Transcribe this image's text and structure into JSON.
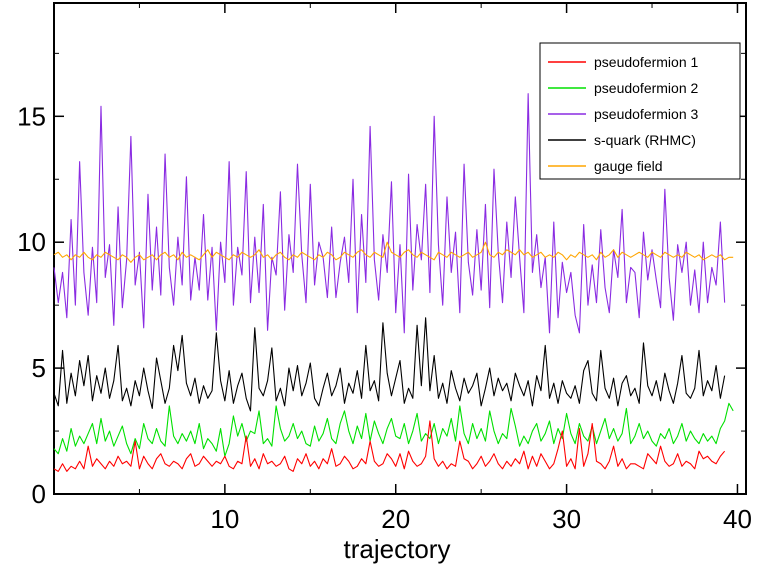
{
  "chart_data": {
    "type": "line",
    "title": "",
    "xlabel": "trajectory",
    "ylabel": "",
    "xlim": [
      0,
      40.5
    ],
    "ylim": [
      0,
      19.5
    ],
    "x_ticks": [
      10,
      20,
      30,
      40
    ],
    "y_ticks": [
      0,
      5,
      10,
      15
    ],
    "x_tick_labels": [
      "10",
      "20",
      "30",
      "40"
    ],
    "y_tick_labels": [
      "0",
      "5",
      "10",
      "15"
    ],
    "grid": false,
    "legend_position": "top-right",
    "note": "series values estimated from plot; sampled every 0.25 trajectory units",
    "series": [
      {
        "name": "pseudofermion 1",
        "color": "#ff0000",
        "x_start": 0,
        "x_step": 0.25,
        "values": [
          1.0,
          0.9,
          1.2,
          0.9,
          1.1,
          1.0,
          1.3,
          1.0,
          1.9,
          1.1,
          1.4,
          1.2,
          1.0,
          1.3,
          1.1,
          1.5,
          1.2,
          1.3,
          1.1,
          2.1,
          1.0,
          1.5,
          1.2,
          1.0,
          1.4,
          1.6,
          1.2,
          1.1,
          1.3,
          1.2,
          1.0,
          1.4,
          1.6,
          1.1,
          1.2,
          1.5,
          1.3,
          1.1,
          1.3,
          1.2,
          1.5,
          1.1,
          1.0,
          1.3,
          1.2,
          2.3,
          1.1,
          1.4,
          1.0,
          1.6,
          1.2,
          1.3,
          1.1,
          1.2,
          1.5,
          1.0,
          0.9,
          1.4,
          1.2,
          1.6,
          1.1,
          1.3,
          1.0,
          1.4,
          1.2,
          1.8,
          1.1,
          1.2,
          1.5,
          1.3,
          1.0,
          1.1,
          1.4,
          1.2,
          2.1,
          1.3,
          1.1,
          1.2,
          1.6,
          1.4,
          1.1,
          1.6,
          1.0,
          1.7,
          1.3,
          1.1,
          1.2,
          1.5,
          2.9,
          1.4,
          1.1,
          1.3,
          1.0,
          1.2,
          1.1,
          2.1,
          1.4,
          1.3,
          1.0,
          1.2,
          1.5,
          1.1,
          1.3,
          1.6,
          1.2,
          1.0,
          1.3,
          1.1,
          1.4,
          1.2,
          1.7,
          1.0,
          1.5,
          1.1,
          1.6,
          1.3,
          1.0,
          1.2,
          1.8,
          2.5,
          1.1,
          1.4,
          1.0,
          2.6,
          1.1,
          1.6,
          2.8,
          1.3,
          1.2,
          1.0,
          1.3,
          1.9,
          1.1,
          1.4,
          1.0,
          1.2,
          1.2,
          1.1,
          1.0,
          1.6,
          1.4,
          1.2,
          1.9,
          1.3,
          1.1,
          1.2,
          1.6,
          1.1,
          1.3,
          1.2,
          1.0,
          1.7,
          1.4,
          1.5,
          1.3,
          1.2,
          1.5,
          1.7
        ]
      },
      {
        "name": "pseudofermion 2",
        "color": "#00e000",
        "x_start": 0,
        "x_step": 0.25,
        "values": [
          1.8,
          1.6,
          2.2,
          1.7,
          2.6,
          1.9,
          2.3,
          2.0,
          2.4,
          2.8,
          2.0,
          3.0,
          2.1,
          2.5,
          1.9,
          2.3,
          2.7,
          2.0,
          1.6,
          2.2,
          1.8,
          2.8,
          2.2,
          2.0,
          2.6,
          2.1,
          1.9,
          3.5,
          2.3,
          2.0,
          2.4,
          2.1,
          2.5,
          2.0,
          2.8,
          1.8,
          2.2,
          2.0,
          1.7,
          2.6,
          1.5,
          2.0,
          3.1,
          2.3,
          2.8,
          2.1,
          2.5,
          2.4,
          3.3,
          2.0,
          2.2,
          1.9,
          3.5,
          2.6,
          2.1,
          2.3,
          2.8,
          2.2,
          2.5,
          2.0,
          1.9,
          2.7,
          2.1,
          2.4,
          3.0,
          2.2,
          2.0,
          2.8,
          3.3,
          2.5,
          2.0,
          2.7,
          2.2,
          3.2,
          2.1,
          2.9,
          2.4,
          2.0,
          2.6,
          3.0,
          2.3,
          2.2,
          2.8,
          2.0,
          2.5,
          3.2,
          2.1,
          2.4,
          2.2,
          2.8,
          2.0,
          2.6,
          2.3,
          3.0,
          2.1,
          3.5,
          2.4,
          2.0,
          2.8,
          2.2,
          2.6,
          2.1,
          3.3,
          2.5,
          2.0,
          2.4,
          2.2,
          3.4,
          2.7,
          1.9,
          2.3,
          2.0,
          2.5,
          2.8,
          2.1,
          2.4,
          2.9,
          2.0,
          2.6,
          2.2,
          3.2,
          2.4,
          2.0,
          2.8,
          2.3,
          2.1,
          2.7,
          2.0,
          2.5,
          3.0,
          2.2,
          2.6,
          2.1,
          2.4,
          3.4,
          2.0,
          2.3,
          2.8,
          2.2,
          2.5,
          2.1,
          1.9,
          2.4,
          2.2,
          2.6,
          2.0,
          2.3,
          2.8,
          2.1,
          2.5,
          2.2,
          2.0,
          2.4,
          2.1,
          2.3,
          2.0,
          2.6,
          2.9,
          3.6,
          3.3
        ]
      },
      {
        "name": "pseudofermion 3",
        "color": "#8a2be2",
        "x_start": 0,
        "x_step": 0.25,
        "values": [
          9.0,
          7.6,
          8.8,
          7.0,
          10.9,
          7.5,
          13.2,
          8.8,
          7.1,
          9.8,
          7.6,
          15.4,
          8.6,
          9.9,
          6.7,
          11.4,
          7.4,
          9.3,
          14.2,
          8.3,
          9.6,
          6.6,
          11.9,
          8.1,
          10.6,
          7.9,
          13.5,
          9.0,
          7.5,
          10.2,
          8.3,
          12.6,
          7.7,
          9.4,
          8.1,
          11.1,
          7.7,
          9.8,
          6.5,
          10.0,
          8.4,
          13.2,
          7.5,
          9.8,
          8.7,
          12.8,
          7.6,
          10.2,
          8.0,
          11.5,
          6.5,
          9.4,
          8.7,
          12.0,
          7.3,
          10.3,
          8.8,
          13.1,
          9.5,
          7.6,
          12.3,
          8.3,
          10.0,
          9.4,
          7.8,
          10.6,
          7.8,
          9.2,
          10.2,
          8.4,
          12.5,
          7.2,
          11.1,
          8.4,
          14.6,
          9.3,
          7.7,
          10.3,
          8.8,
          12.4,
          7.2,
          9.9,
          6.4,
          12.7,
          8.1,
          10.7,
          9.3,
          12.3,
          8.0,
          15.0,
          9.9,
          7.5,
          11.8,
          8.8,
          10.4,
          7.2,
          13.1,
          9.2,
          7.9,
          10.5,
          8.1,
          11.5,
          7.4,
          12.9,
          9.6,
          7.6,
          10.8,
          8.6,
          11.8,
          9.4,
          7.2,
          15.9,
          8.8,
          10.3,
          8.2,
          9.4,
          6.4,
          10.8,
          7.0,
          9.2,
          8.0,
          8.8,
          7.1,
          6.4,
          10.7,
          7.5,
          9.1,
          7.6,
          10.5,
          8.2,
          7.2,
          9.7,
          8.6,
          11.3,
          7.6,
          9.0,
          8.8,
          7.0,
          10.4,
          8.5,
          9.7,
          8.5,
          7.4,
          12.1,
          8.6,
          6.9,
          9.9,
          8.8,
          10.0,
          7.5,
          8.9,
          7.2,
          10.0,
          7.6,
          9.0,
          8.3,
          10.8,
          7.6
        ]
      },
      {
        "name": "s-quark (RHMC)",
        "color": "#000000",
        "x_start": 0,
        "x_step": 0.25,
        "values": [
          4.0,
          3.5,
          5.7,
          3.6,
          4.8,
          3.9,
          5.3,
          4.3,
          5.5,
          3.7,
          4.7,
          4.0,
          5.0,
          3.8,
          4.5,
          5.9,
          3.7,
          4.2,
          3.5,
          4.5,
          3.9,
          5.0,
          4.1,
          3.4,
          5.4,
          4.5,
          3.6,
          4.2,
          5.9,
          4.9,
          6.3,
          4.4,
          3.9,
          4.6,
          3.6,
          4.3,
          3.8,
          4.1,
          6.4,
          4.5,
          3.7,
          4.9,
          3.6,
          4.3,
          4.8,
          3.8,
          3.3,
          6.6,
          4.2,
          3.9,
          4.5,
          5.8,
          3.7,
          4.2,
          3.5,
          5.0,
          4.1,
          5.1,
          3.9,
          4.4,
          5.2,
          3.8,
          3.5,
          4.2,
          4.8,
          3.9,
          4.3,
          5.0,
          3.6,
          4.4,
          4.0,
          4.9,
          3.8,
          5.9,
          4.1,
          4.5,
          3.7,
          6.8,
          4.8,
          3.9,
          4.6,
          5.3,
          3.6,
          4.2,
          3.8,
          6.7,
          4.3,
          7.0,
          4.1,
          5.5,
          3.8,
          4.4,
          3.6,
          4.9,
          4.2,
          3.7,
          4.6,
          4.0,
          4.3,
          4.8,
          3.5,
          4.2,
          5.0,
          3.9,
          4.6,
          4.1,
          4.4,
          3.7,
          4.8,
          4.3,
          3.9,
          4.5,
          3.5,
          4.7,
          4.1,
          5.9,
          3.8,
          4.4,
          3.6,
          4.5,
          4.0,
          3.8,
          4.3,
          3.6,
          4.9,
          5.3,
          4.0,
          3.7,
          5.7,
          4.2,
          3.8,
          4.6,
          3.5,
          4.4,
          4.7,
          3.9,
          4.2,
          3.6,
          6.0,
          4.3,
          3.9,
          4.5,
          3.7,
          4.8,
          4.1,
          3.6,
          4.4,
          5.5,
          4.0,
          3.8,
          4.2,
          5.7,
          3.9,
          4.5,
          4.1,
          5.1,
          3.8,
          4.7
        ]
      },
      {
        "name": "gauge field",
        "color": "#ffa500",
        "x_start": 0,
        "x_step": 0.25,
        "values": [
          9.5,
          9.6,
          9.4,
          9.5,
          9.3,
          9.5,
          9.4,
          9.6,
          9.4,
          9.3,
          9.5,
          9.4,
          9.6,
          9.5,
          9.4,
          9.3,
          9.5,
          9.4,
          9.2,
          9.4,
          9.5,
          9.3,
          9.4,
          9.5,
          9.3,
          9.5,
          9.6,
          9.4,
          9.5,
          9.3,
          9.6,
          9.4,
          9.5,
          9.4,
          9.3,
          9.5,
          9.7,
          9.4,
          9.6,
          9.5,
          9.4,
          9.3,
          9.5,
          9.4,
          9.6,
          9.5,
          9.4,
          9.5,
          9.7,
          9.4,
          9.5,
          9.3,
          9.5,
          9.6,
          9.4,
          9.3,
          9.5,
          9.4,
          9.6,
          9.5,
          9.4,
          9.3,
          9.5,
          9.4,
          9.6,
          9.5,
          9.3,
          9.4,
          9.6,
          9.5,
          9.4,
          9.6,
          9.7,
          9.5,
          9.4,
          9.6,
          9.5,
          9.4,
          10.0,
          9.6,
          9.5,
          9.4,
          9.6,
          9.7,
          9.5,
          9.4,
          9.6,
          9.5,
          9.4,
          9.3,
          9.6,
          9.5,
          9.4,
          9.6,
          9.5,
          9.4,
          9.5,
          9.6,
          9.4,
          9.5,
          9.6,
          10.0,
          9.5,
          9.4,
          9.6,
          9.5,
          9.7,
          9.6,
          9.5,
          9.7,
          9.5,
          9.6,
          9.4,
          9.5,
          9.6,
          9.4,
          9.5,
          9.4,
          9.6,
          9.5,
          9.3,
          9.5,
          9.4,
          9.6,
          9.5,
          9.4,
          9.5,
          9.3,
          9.6,
          9.4,
          9.5,
          9.7,
          9.4,
          9.6,
          9.5,
          9.4,
          9.5,
          9.6,
          9.5,
          9.4,
          9.6,
          9.5,
          9.4,
          9.6,
          9.5,
          9.4,
          9.5,
          9.4,
          9.6,
          9.5,
          9.4,
          9.5,
          9.3,
          9.4,
          9.5,
          9.4,
          9.5,
          9.3,
          9.4,
          9.4
        ]
      }
    ]
  }
}
